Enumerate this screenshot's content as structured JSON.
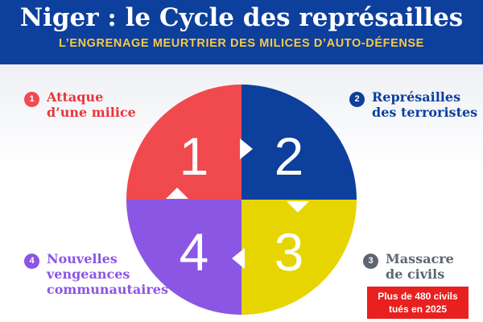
{
  "header": {
    "title": "Niger : le Cycle des représailles",
    "subtitle": "L’ENGRENAGE MEURTRIER DES MILICES D’AUTO-DÉFENSE"
  },
  "colors": {
    "header_bg": "#0d3f9c",
    "subtitle": "#f7c948",
    "segment_1": "#f04a4f",
    "segment_2": "#0d3f9c",
    "segment_3": "#e6d500",
    "segment_4": "#8b56e3",
    "step_3_text": "#5d6573",
    "stat_bg": "#e8201f"
  },
  "cycle": {
    "segments": [
      {
        "number": "1",
        "color": "#f04a4f"
      },
      {
        "number": "2",
        "color": "#0d3f9c"
      },
      {
        "number": "3",
        "color": "#e6d500"
      },
      {
        "number": "4",
        "color": "#8b56e3"
      }
    ]
  },
  "steps": [
    {
      "number": "1",
      "label": "Attaque\nd’une milice"
    },
    {
      "number": "2",
      "label": "Représailles\ndes terroristes"
    },
    {
      "number": "3",
      "label": "Massacre\nde civils"
    },
    {
      "number": "4",
      "label": "Nouvelles\nvengeances\ncommunautaires"
    }
  ],
  "stat": {
    "text": "Plus de 480 civils\ntués en 2025"
  }
}
